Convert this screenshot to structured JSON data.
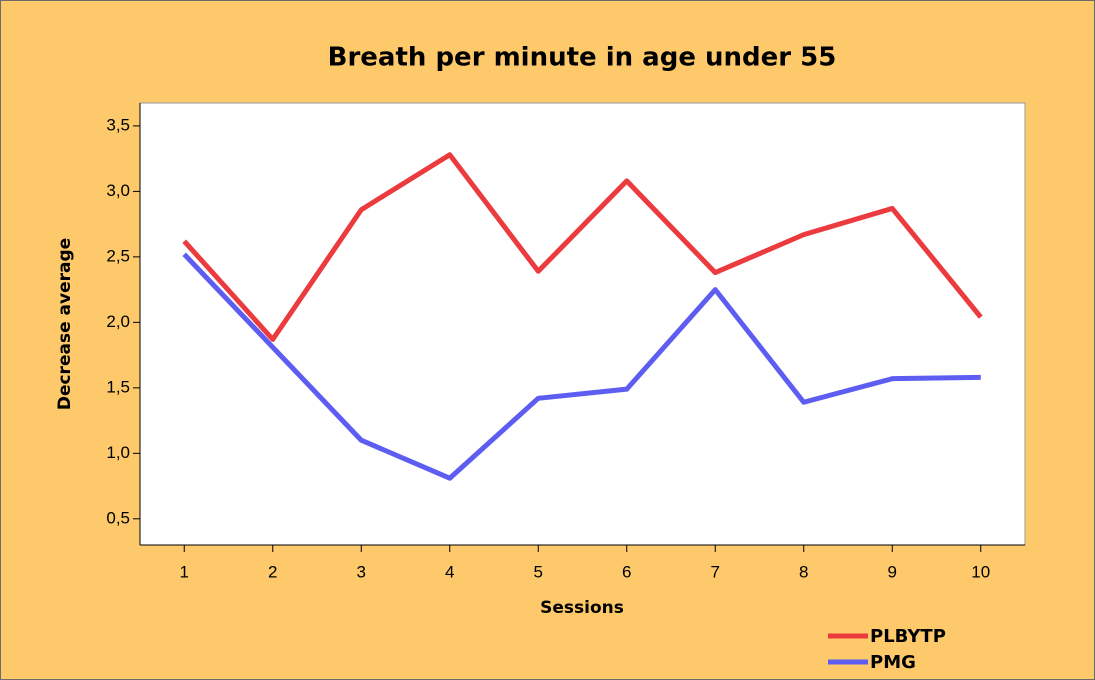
{
  "chart_data": {
    "type": "line",
    "title": "Breath per minute in age under 55",
    "xlabel": "Sessions",
    "ylabel": "Decrease average",
    "x": [
      1,
      2,
      3,
      4,
      5,
      6,
      7,
      8,
      9,
      10
    ],
    "series": [
      {
        "name": "PLBYTP",
        "color": "#eb3b3f",
        "values": [
          2.62,
          1.87,
          2.86,
          3.28,
          2.39,
          3.08,
          2.38,
          2.67,
          2.87,
          2.04
        ]
      },
      {
        "name": "PMG",
        "color": "#5d5df2",
        "values": [
          2.52,
          1.81,
          1.1,
          0.81,
          1.42,
          1.49,
          2.25,
          1.39,
          1.57,
          1.58
        ]
      }
    ],
    "xlim": [
      0.5,
      10.5
    ],
    "xticks": [
      1,
      2,
      3,
      4,
      5,
      6,
      7,
      8,
      9,
      10
    ],
    "ylim": [
      0.3,
      3.675
    ],
    "yticks": [
      {
        "value": 0.5,
        "label": "0,5"
      },
      {
        "value": 1.0,
        "label": "1,0"
      },
      {
        "value": 1.5,
        "label": "1,5"
      },
      {
        "value": 2.0,
        "label": "2,0"
      },
      {
        "value": 2.5,
        "label": "2,5"
      },
      {
        "value": 3.0,
        "label": "3,0"
      },
      {
        "value": 3.5,
        "label": "3,5"
      }
    ],
    "legend": "lower right"
  }
}
